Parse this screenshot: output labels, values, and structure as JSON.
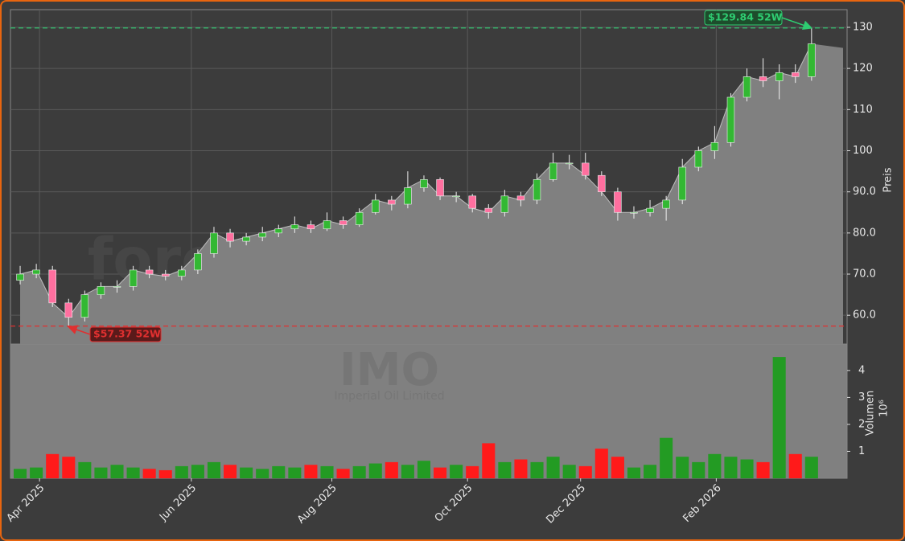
{
  "chart_data": {
    "type": "candlestick",
    "x": [
      0,
      1,
      2,
      3,
      4,
      5,
      6,
      7,
      8,
      9,
      10,
      11,
      12,
      13,
      14,
      15,
      16,
      17,
      18,
      19,
      20,
      21,
      22,
      23,
      24,
      25,
      26,
      27,
      28,
      29,
      30,
      31,
      32,
      33,
      34,
      35,
      36,
      37,
      38,
      39,
      40,
      41,
      42,
      43,
      44,
      45,
      46,
      47,
      48,
      49
    ],
    "open": [
      68.5,
      70,
      71,
      63,
      59.5,
      65,
      67,
      67,
      71,
      70,
      69.5,
      71,
      75,
      80,
      78,
      79,
      80,
      81,
      82,
      81,
      83,
      82,
      85,
      88,
      87,
      91,
      93,
      89,
      89,
      86,
      85,
      89,
      88,
      93,
      97,
      97,
      94,
      90,
      85,
      85,
      86,
      88,
      96,
      100,
      102,
      113,
      118,
      117,
      119,
      118
    ],
    "high": [
      72,
      72.5,
      72,
      64,
      66,
      68,
      68.5,
      72,
      72,
      71,
      72,
      76,
      81.5,
      81,
      80,
      81.5,
      82,
      84,
      83,
      85,
      84,
      86,
      89.5,
      89,
      95,
      94,
      93.5,
      90,
      89.5,
      87,
      90.5,
      90,
      94.5,
      99.5,
      99,
      99.5,
      95,
      91,
      86.5,
      88,
      89,
      98,
      101,
      106,
      114,
      120,
      122.5,
      121,
      121,
      129.84
    ],
    "low": [
      67.5,
      69,
      62,
      57.37,
      58.5,
      64,
      65.5,
      66,
      69,
      68.5,
      68.5,
      70,
      74,
      76.5,
      77,
      78,
      79,
      80,
      80,
      80.5,
      81,
      81.5,
      84.5,
      85.5,
      86,
      90,
      88,
      87.5,
      85,
      83.5,
      84,
      86.5,
      87,
      92.5,
      95.5,
      93,
      89,
      83,
      83.5,
      84,
      83,
      87,
      95,
      98,
      101,
      112,
      115.5,
      112.5,
      116.5,
      117
    ],
    "close": [
      70,
      71,
      63,
      59.5,
      65,
      67,
      67,
      71,
      70,
      69.5,
      71,
      75,
      80,
      78,
      79,
      80,
      81,
      82,
      81,
      83,
      82,
      85,
      88,
      87,
      91,
      93,
      89,
      89,
      86,
      85,
      89,
      88,
      93,
      97,
      97,
      94,
      90,
      85,
      85,
      86,
      88,
      96,
      100,
      102,
      113,
      118,
      117,
      119,
      118,
      126
    ],
    "volume": [
      0.35,
      0.4,
      0.9,
      0.8,
      0.6,
      0.4,
      0.5,
      0.4,
      0.35,
      0.3,
      0.45,
      0.5,
      0.6,
      0.5,
      0.4,
      0.35,
      0.45,
      0.4,
      0.5,
      0.45,
      0.35,
      0.45,
      0.55,
      0.6,
      0.5,
      0.65,
      0.4,
      0.5,
      0.45,
      1.3,
      0.6,
      0.7,
      0.6,
      0.8,
      0.5,
      0.45,
      1.1,
      0.8,
      0.4,
      0.5,
      1.5,
      0.8,
      0.6,
      0.9,
      0.8,
      0.7,
      0.6,
      4.5,
      0.9,
      0.8
    ],
    "xlim": [
      -0.6,
      51.2
    ],
    "xticks": [
      {
        "value": 1.2,
        "label": "Apr 2025"
      },
      {
        "value": 10.6,
        "label": "Jun 2025"
      },
      {
        "value": 19.3,
        "label": "Aug 2025"
      },
      {
        "value": 27.7,
        "label": "Oct 2025"
      },
      {
        "value": 34.7,
        "label": "Dec 2025"
      },
      {
        "value": 43.1,
        "label": "Feb 2026"
      }
    ],
    "ylim": [
      53,
      134.3
    ],
    "yticks": [
      {
        "value": 60,
        "label": "60.0"
      },
      {
        "value": 70,
        "label": "70.0"
      },
      {
        "value": 80,
        "label": "80.0"
      },
      {
        "value": 90,
        "label": "90.0"
      },
      {
        "value": 100,
        "label": "100"
      },
      {
        "value": 110,
        "label": "110"
      },
      {
        "value": 120,
        "label": "120"
      },
      {
        "value": 130,
        "label": "130"
      }
    ],
    "ylabel": "Preis",
    "volume_ylim": [
      0,
      4.98
    ],
    "volume_yticks": [
      1,
      2,
      3,
      4
    ],
    "volume_label": "Volumen",
    "volume_offset_label": "10⁶",
    "grid": true,
    "up_color": "#33b833",
    "down_color": "#ff6f9f",
    "volume_up_color": "#239b23",
    "volume_down_color": "#ff1a1a",
    "area_color": "#808080",
    "annotations": [
      {
        "text": "$129.84 52W",
        "value": 129.84,
        "x": 49,
        "color": "#2ecc71"
      },
      {
        "text": "$57.37 52W",
        "value": 57.37,
        "x": 3,
        "color": "#e03030"
      }
    ],
    "watermark": "forexsignale.trade",
    "symbol": "IMO",
    "company": "Imperial Oil Limited"
  }
}
